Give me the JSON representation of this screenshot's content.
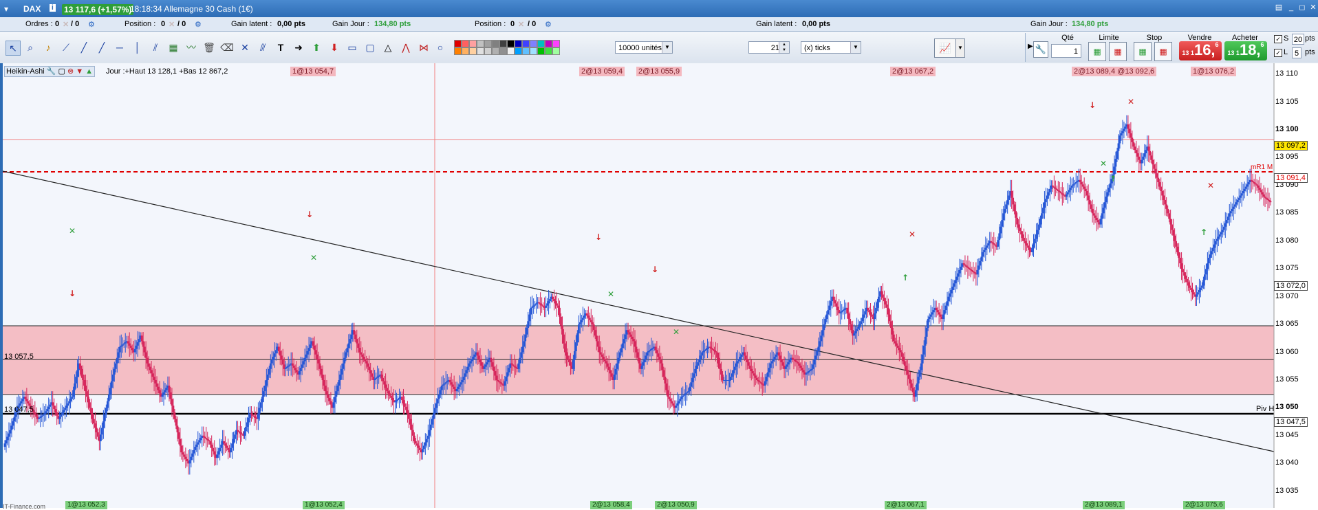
{
  "titlebar": {
    "instrument": "DAX",
    "info": "i",
    "price_badge": "13 117,6 (+1,57%)",
    "time_title": "18:18:34 Allemagne 30 Cash (1€)"
  },
  "status": {
    "orders_label": "Ordres :",
    "orders_value": "0",
    "orders_sep": "/ 0",
    "position_label": "Position :",
    "position_value": "0",
    "position_sep": "/ 0",
    "gain_latent_label": "Gain latent :",
    "gain_latent_value": "0,00 pts",
    "gain_jour_label": "Gain Jour :",
    "gain_jour_value": "134,80 pts",
    "position2_label": "Position :",
    "position2_value": "0",
    "position2_sep": "/ 0",
    "gain_latent2_label": "Gain latent :",
    "gain_latent2_value": "0,00 pts",
    "gain_jour2_label": "Gain Jour :",
    "gain_jour2_value": "134,80 pts"
  },
  "toolbar": {
    "units_value": "10000 unités",
    "ticks_value": "21",
    "ticks_unit": "(x) ticks",
    "swatches": [
      "#e00000",
      "#ff6060",
      "#ffa0a0",
      "#c0c0c0",
      "#a0a0a0",
      "#808080",
      "#404040",
      "#000000",
      "#0000c0",
      "#4040ff",
      "#8080ff",
      "#00c0c0",
      "#c000c0",
      "#ff40ff",
      "#ff8000",
      "#ffb060",
      "#ffd0a0",
      "#e0e0e0",
      "#d0d0d0",
      "#b0b0b0",
      "#909090",
      "#f0f0f0",
      "#00a0ff",
      "#60c0ff",
      "#a0e0ff",
      "#00c000",
      "#40e040",
      "#a0ffa0"
    ],
    "order": {
      "qty_label": "Qté",
      "qty_value": "1",
      "limit_label": "Limite",
      "stop_label": "Stop",
      "sell_label": "Vendre",
      "sell_prefix": "13 1",
      "sell_big": "16,",
      "sell_suffix": "6",
      "buy_label": "Acheter",
      "buy_prefix": "13 1",
      "buy_big": "18,",
      "buy_suffix": "6",
      "s_label": "S",
      "s_value": "20",
      "s_unit": "pts",
      "l_label": "L",
      "l_value": "5",
      "l_unit": "pts"
    }
  },
  "chart_header": {
    "chart_type": "Heikin-Ashi",
    "day_info": "Jour :+Haut 13 128,1 +Bas 12 867,2"
  },
  "top_labels": [
    "1@13 054,7",
    "2@13 059,4",
    "2@13 055,9",
    "2@13 067,2",
    "2@13 089,4 @13 092,6",
    "1@13 076,2"
  ],
  "bottom_labels": [
    "1@13 052,3",
    "1@13 052,4",
    "2@13 058,4",
    "2@13 050,9",
    "2@13 067,1",
    "2@13 089,1",
    "2@13 075,6"
  ],
  "bottom_text": "IT-Finance.com  ",
  "level_labels": {
    "zone_mid": "13 057,5",
    "zone_low": "13 047,5",
    "piv_h": "Piv H",
    "r1": "mR1 M"
  },
  "axis": {
    "ticks": [
      "13 110",
      "13 105",
      "13 100",
      "13 095",
      "13 090",
      "13 085",
      "13 080",
      "13 075",
      "13 070",
      "13 065",
      "13 060",
      "13 055",
      "13 050",
      "13 045",
      "13 040",
      "13 035"
    ],
    "markers": [
      "13 097,2",
      "13 091,4",
      "13 072,0",
      "13 047,5"
    ]
  },
  "chart_data": {
    "type": "line",
    "title": "",
    "y_range": [
      13032,
      13112
    ],
    "series": [
      {
        "values": [
          13043,
          13046,
          13050,
          13052,
          13050,
          13048,
          13049,
          13051,
          13048,
          13050,
          13052,
          13058,
          13053,
          13048,
          13044,
          13050,
          13056,
          13061,
          13062,
          13060,
          13063,
          13058,
          13055,
          13052,
          13054,
          13048,
          13042,
          13040,
          13043,
          13045,
          13044,
          13041,
          13044,
          13042,
          13046,
          13045,
          13049,
          13048,
          13053,
          13058,
          13061,
          13057,
          13058,
          13056,
          13059,
          13062,
          13058,
          13053,
          13050,
          13055,
          13060,
          13064,
          13060,
          13058,
          13055,
          13056,
          13053,
          13051,
          13052,
          13049,
          13044,
          13042,
          13045,
          13050,
          13054,
          13055,
          13053,
          13055,
          13058,
          13060,
          13057,
          13059,
          13055,
          13054,
          13058,
          13057,
          13062,
          13068,
          13069,
          13068,
          13070,
          13068,
          13060,
          13057,
          13065,
          13067,
          13065,
          13060,
          13058,
          13055,
          13060,
          13064,
          13062,
          13057,
          13060,
          13061,
          13058,
          13052,
          13050,
          13052,
          13053,
          13057,
          13060,
          13061,
          13060,
          13055,
          13055,
          13058,
          13060,
          13057,
          13055,
          13054,
          13058,
          13060,
          13057,
          13059,
          13058,
          13056,
          13057,
          13061,
          13066,
          13070,
          13067,
          13068,
          13063,
          13065,
          13068,
          13066,
          13071,
          13068,
          13062,
          13060,
          13056,
          13052,
          13058,
          13066,
          13068,
          13066,
          13070,
          13073,
          13076,
          13075,
          13074,
          13078,
          13080,
          13079,
          13085,
          13089,
          13083,
          13080,
          13078,
          13082,
          13087,
          13090,
          13089,
          13088,
          13090,
          13091,
          13089,
          13085,
          13083,
          13088,
          13092,
          13099,
          13101,
          13097,
          13094,
          13097,
          13093,
          13089,
          13085,
          13080,
          13075,
          13072,
          13070,
          13072,
          13077,
          13080,
          13082,
          13085,
          13087,
          13089,
          13091,
          13090,
          13088,
          13087
        ]
      }
    ]
  }
}
